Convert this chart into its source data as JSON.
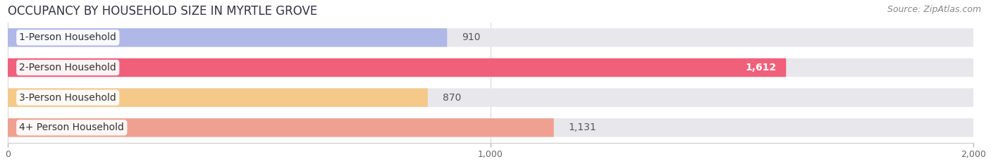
{
  "title": "OCCUPANCY BY HOUSEHOLD SIZE IN MYRTLE GROVE",
  "source": "Source: ZipAtlas.com",
  "categories": [
    "1-Person Household",
    "2-Person Household",
    "3-Person Household",
    "4+ Person Household"
  ],
  "values": [
    910,
    1612,
    870,
    1131
  ],
  "bar_colors": [
    "#b0b8e8",
    "#f0607a",
    "#f5c98a",
    "#f0a090"
  ],
  "bar_bg_color": "#e8e8ec",
  "xlim": [
    0,
    2000
  ],
  "xticks": [
    0,
    1000,
    2000
  ],
  "xtick_labels": [
    "0",
    "1,000",
    "2,000"
  ],
  "value_labels": [
    "910",
    "1,612",
    "870",
    "1,131"
  ],
  "value_inside": [
    false,
    true,
    false,
    false
  ],
  "title_fontsize": 12,
  "source_fontsize": 9,
  "label_fontsize": 10,
  "value_fontsize": 10,
  "tick_fontsize": 9,
  "bg_color": "#ffffff",
  "bar_height": 0.62
}
